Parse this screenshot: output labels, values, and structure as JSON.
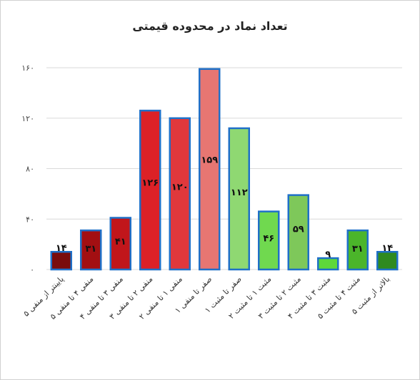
{
  "chart_data": {
    "type": "bar",
    "title": "تعداد نماد در محدوده قیمتی",
    "categories": [
      "پایینتر از منفی ۵",
      "منفی ۴ تا منفی ۵",
      "منفی ۳ تا منفی ۴",
      "منفی ۲ تا منفی ۳",
      "منفی ۱ تا منفی ۲",
      "صفر تا منفی ۱",
      "صفر تا مثبت ۱",
      "مثبت ۱ تا مثبت ۲",
      "مثبت ۲ تا مثبت ۳",
      "مثبت ۳ تا مثبت ۴",
      "مثبت ۴ تا مثبت ۵",
      "بالاتر از مثبت ۵"
    ],
    "values": [
      14,
      31,
      41,
      126,
      120,
      159,
      112,
      46,
      59,
      9,
      31,
      14
    ],
    "value_labels": [
      "۱۴",
      "۳۱",
      "۴۱",
      "۱۲۶",
      "۱۲۰",
      "۱۵۹",
      "۱۱۲",
      "۴۶",
      "۵۹",
      "۹",
      "۳۱",
      "۱۴"
    ],
    "colors": [
      "#7a0c0c",
      "#a30f12",
      "#c1161b",
      "#dc2127",
      "#e0383c",
      "#e77672",
      "#8fd872",
      "#70d94f",
      "#7ec85a",
      "#5ed83a",
      "#4bb52a",
      "#2f8a20"
    ],
    "edge_color": "#1f70c8",
    "ylim": [
      0,
      160
    ],
    "yticks": [
      {
        "value": 0,
        "label": "۰"
      },
      {
        "value": 40,
        "label": "۴۰"
      },
      {
        "value": 80,
        "label": "۸۰"
      },
      {
        "value": 120,
        "label": "۱۲۰"
      },
      {
        "value": 160,
        "label": "۱۶۰"
      }
    ],
    "grid": true
  }
}
